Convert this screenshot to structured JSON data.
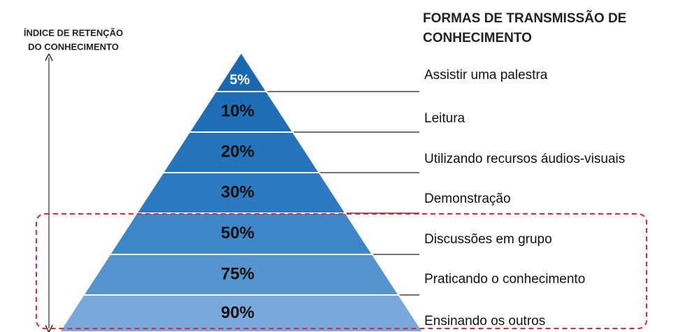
{
  "left_label": [
    "ÍNDICE DE RETENÇÃO",
    "DO CONHECIMENTO"
  ],
  "right_title": [
    "FORMAS DE TRANSMISSÃO DE",
    "CONHECIMENTO"
  ],
  "levels": [
    {
      "percent": "5%",
      "text": "Assistir uma palestra"
    },
    {
      "percent": "10%",
      "text": "Leitura"
    },
    {
      "percent": "20%",
      "text": "Utilizando recursos áudios-visuais"
    },
    {
      "percent": "30%",
      "text": "Demonstração"
    },
    {
      "percent": "50%",
      "text": "Discussões em grupo"
    },
    {
      "percent": "75%",
      "text": "Praticando o conhecimento"
    },
    {
      "percent": "90%",
      "text": "Ensinando os outros"
    }
  ]
}
